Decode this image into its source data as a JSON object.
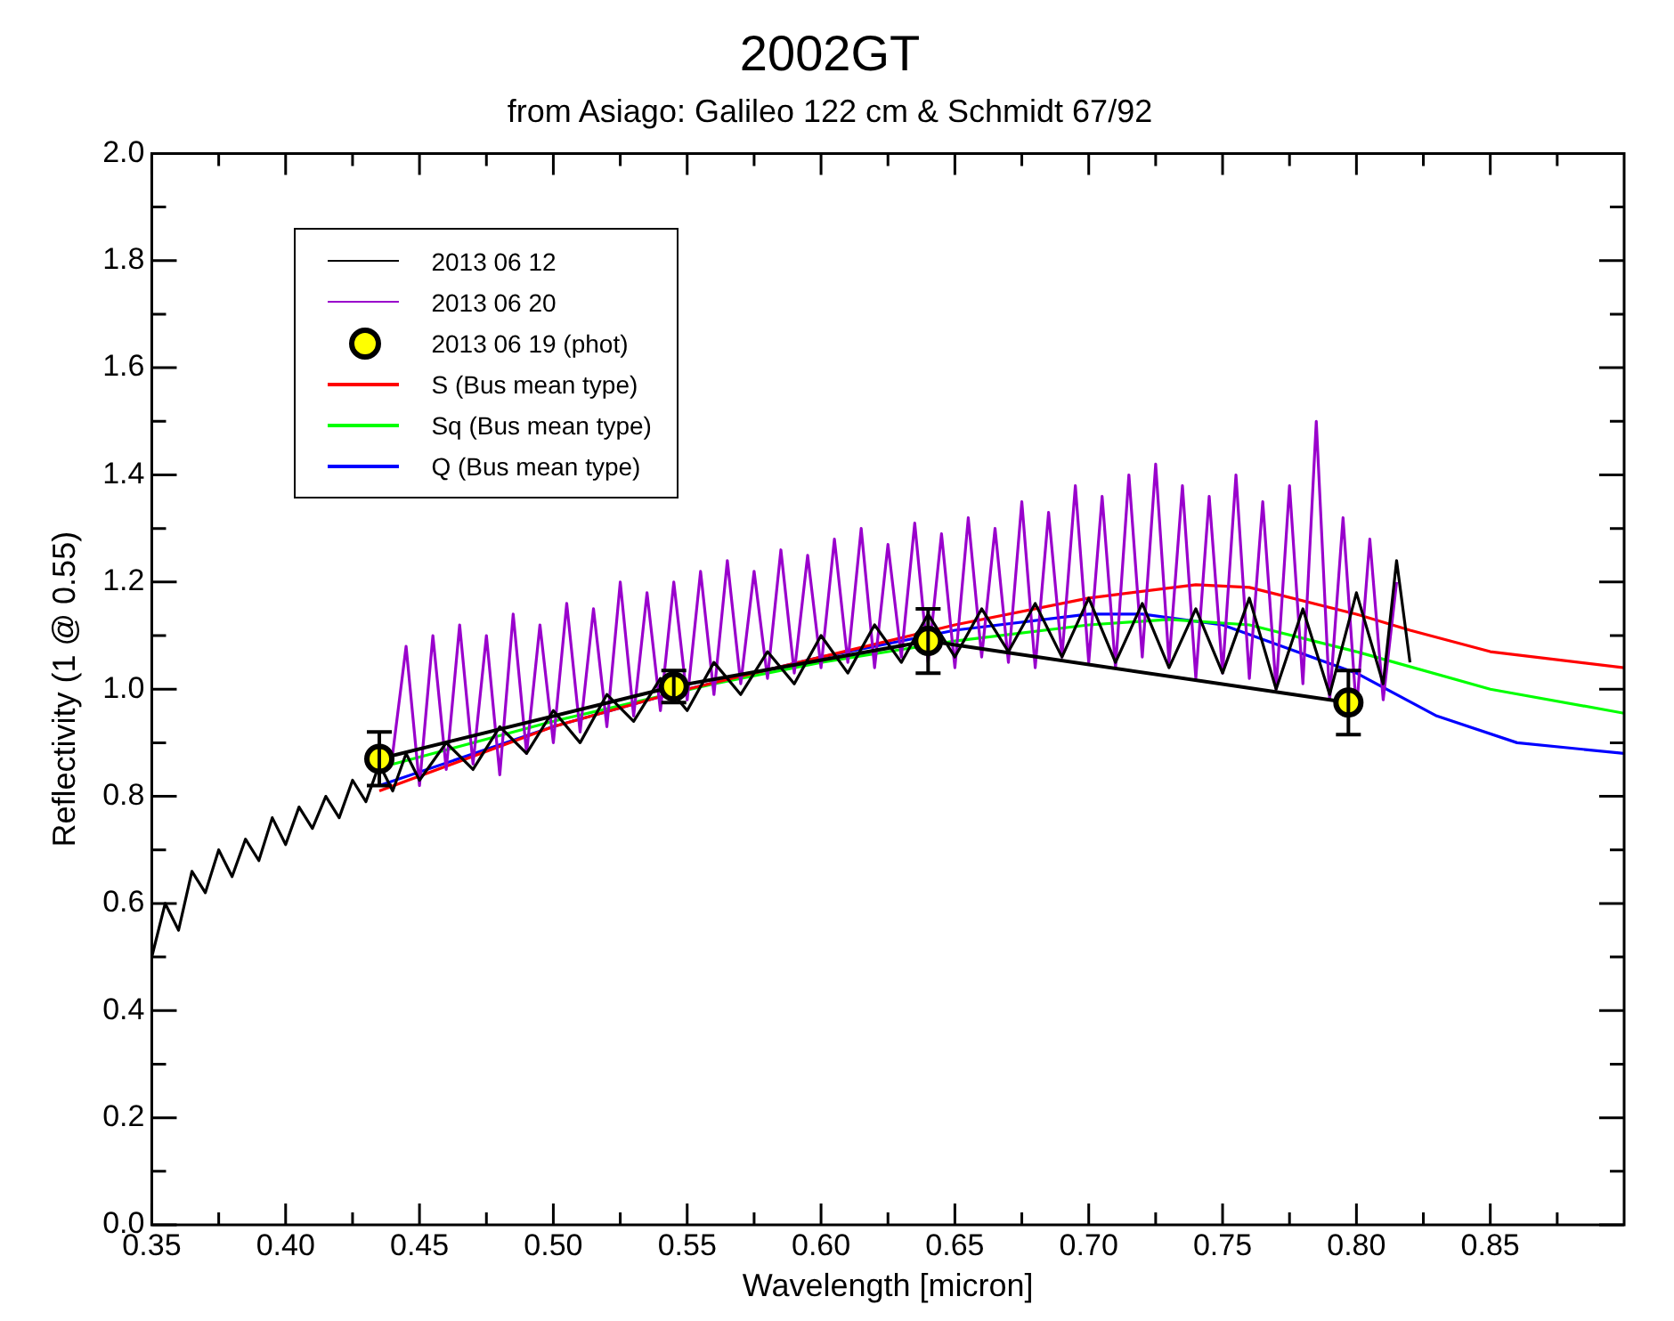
{
  "chart_data": {
    "type": "line",
    "title": "2002GT",
    "subtitle": "from Asiago: Galileo 122 cm & Schmidt 67/92",
    "xlabel": "Wavelength [micron]",
    "ylabel": "Reflectivity (1 @ 0.55)",
    "xlim": [
      0.35,
      0.9
    ],
    "xticks": [
      {
        "value": 0.35,
        "label": "0.35"
      },
      {
        "value": 0.375,
        "label": null
      },
      {
        "value": 0.4,
        "label": "0.40"
      },
      {
        "value": 0.425,
        "label": null
      },
      {
        "value": 0.45,
        "label": "0.45"
      },
      {
        "value": 0.475,
        "label": null
      },
      {
        "value": 0.5,
        "label": "0.50"
      },
      {
        "value": 0.525,
        "label": null
      },
      {
        "value": 0.55,
        "label": "0.55"
      },
      {
        "value": 0.575,
        "label": null
      },
      {
        "value": 0.6,
        "label": "0.60"
      },
      {
        "value": 0.625,
        "label": null
      },
      {
        "value": 0.65,
        "label": "0.65"
      },
      {
        "value": 0.675,
        "label": null
      },
      {
        "value": 0.7,
        "label": "0.70"
      },
      {
        "value": 0.725,
        "label": null
      },
      {
        "value": 0.75,
        "label": "0.75"
      },
      {
        "value": 0.775,
        "label": null
      },
      {
        "value": 0.8,
        "label": "0.80"
      },
      {
        "value": 0.825,
        "label": null
      },
      {
        "value": 0.85,
        "label": "0.85"
      },
      {
        "value": 0.875,
        "label": null
      }
    ],
    "ylim": [
      0,
      2
    ],
    "yticks": [
      {
        "value": 0,
        "label": "0.0"
      },
      {
        "value": 0.1,
        "label": null
      },
      {
        "value": 0.2,
        "label": "0.2"
      },
      {
        "value": 0.3,
        "label": null
      },
      {
        "value": 0.4,
        "label": "0.4"
      },
      {
        "value": 0.5,
        "label": null
      },
      {
        "value": 0.6,
        "label": "0.6"
      },
      {
        "value": 0.7,
        "label": null
      },
      {
        "value": 0.8,
        "label": "0.8"
      },
      {
        "value": 0.9,
        "label": null
      },
      {
        "value": 1,
        "label": "1.0"
      },
      {
        "value": 1.1,
        "label": null
      },
      {
        "value": 1.2,
        "label": "1.2"
      },
      {
        "value": 1.3,
        "label": null
      },
      {
        "value": 1.4,
        "label": "1.4"
      },
      {
        "value": 1.5,
        "label": null
      },
      {
        "value": 1.6,
        "label": "1.6"
      },
      {
        "value": 1.7,
        "label": null
      },
      {
        "value": 1.8,
        "label": "1.8"
      },
      {
        "value": 1.9,
        "label": null
      },
      {
        "value": 2,
        "label": "2.0"
      }
    ],
    "legend": "top left",
    "series": [
      {
        "name": "2013 06 12",
        "color": "#000000",
        "marker": "none",
        "x": [
          0.35,
          0.355,
          0.36,
          0.365,
          0.37,
          0.375,
          0.38,
          0.385,
          0.39,
          0.395,
          0.4,
          0.405,
          0.41,
          0.415,
          0.42,
          0.425,
          0.43,
          0.435,
          0.44,
          0.445,
          0.45,
          0.46,
          0.47,
          0.48,
          0.49,
          0.5,
          0.51,
          0.52,
          0.53,
          0.54,
          0.55,
          0.56,
          0.57,
          0.58,
          0.59,
          0.6,
          0.61,
          0.62,
          0.63,
          0.64,
          0.65,
          0.66,
          0.67,
          0.68,
          0.69,
          0.7,
          0.71,
          0.72,
          0.73,
          0.74,
          0.75,
          0.76,
          0.77,
          0.78,
          0.79,
          0.8,
          0.81,
          0.815,
          0.82
        ],
        "values": [
          0.5,
          0.6,
          0.55,
          0.66,
          0.62,
          0.7,
          0.65,
          0.72,
          0.68,
          0.76,
          0.71,
          0.78,
          0.74,
          0.8,
          0.76,
          0.83,
          0.79,
          0.86,
          0.81,
          0.88,
          0.83,
          0.9,
          0.85,
          0.93,
          0.88,
          0.96,
          0.9,
          0.99,
          0.94,
          1.02,
          0.96,
          1.05,
          0.99,
          1.07,
          1.01,
          1.1,
          1.03,
          1.12,
          1.05,
          1.14,
          1.06,
          1.15,
          1.07,
          1.16,
          1.06,
          1.17,
          1.05,
          1.16,
          1.04,
          1.15,
          1.03,
          1.17,
          1.0,
          1.15,
          0.99,
          1.18,
          1.01,
          1.24,
          1.05
        ]
      },
      {
        "name": "2013 06 20",
        "color": "#9900cc",
        "marker": "none",
        "x": [
          0.44,
          0.445,
          0.45,
          0.455,
          0.46,
          0.465,
          0.47,
          0.475,
          0.48,
          0.485,
          0.49,
          0.495,
          0.5,
          0.505,
          0.51,
          0.515,
          0.52,
          0.525,
          0.53,
          0.535,
          0.54,
          0.545,
          0.55,
          0.555,
          0.56,
          0.565,
          0.57,
          0.575,
          0.58,
          0.585,
          0.59,
          0.595,
          0.6,
          0.605,
          0.61,
          0.615,
          0.62,
          0.625,
          0.63,
          0.635,
          0.64,
          0.645,
          0.65,
          0.655,
          0.66,
          0.665,
          0.67,
          0.675,
          0.68,
          0.685,
          0.69,
          0.695,
          0.7,
          0.705,
          0.71,
          0.715,
          0.72,
          0.725,
          0.73,
          0.735,
          0.74,
          0.745,
          0.75,
          0.755,
          0.76,
          0.765,
          0.77,
          0.775,
          0.78,
          0.785,
          0.79,
          0.795,
          0.8,
          0.805,
          0.81,
          0.815
        ],
        "values": [
          0.88,
          1.08,
          0.82,
          1.1,
          0.85,
          1.12,
          0.86,
          1.1,
          0.84,
          1.14,
          0.88,
          1.12,
          0.9,
          1.16,
          0.92,
          1.15,
          0.93,
          1.2,
          0.95,
          1.18,
          0.96,
          1.2,
          0.98,
          1.22,
          0.99,
          1.24,
          1.01,
          1.22,
          1.02,
          1.26,
          1.03,
          1.25,
          1.04,
          1.28,
          1.05,
          1.3,
          1.04,
          1.27,
          1.06,
          1.31,
          1.05,
          1.29,
          1.04,
          1.32,
          1.06,
          1.3,
          1.05,
          1.35,
          1.04,
          1.33,
          1.06,
          1.38,
          1.05,
          1.36,
          1.04,
          1.4,
          1.06,
          1.42,
          1.05,
          1.38,
          1.02,
          1.36,
          1.03,
          1.4,
          1.02,
          1.35,
          1.0,
          1.38,
          1.01,
          1.5,
          0.98,
          1.32,
          0.96,
          1.28,
          0.98,
          1.2
        ]
      },
      {
        "name": "2013 06 19 (phot)",
        "color": "#ffff00",
        "marker": "circle",
        "x": [
          0.435,
          0.545,
          0.64,
          0.797
        ],
        "values": [
          0.87,
          1.005,
          1.09,
          0.975
        ],
        "errors": [
          0.05,
          0.03,
          0.06,
          0.06
        ]
      },
      {
        "name": "S (Bus mean type)",
        "color": "#ff0000",
        "marker": "none",
        "x": [
          0.435,
          0.5,
          0.55,
          0.6,
          0.65,
          0.7,
          0.74,
          0.76,
          0.8,
          0.82,
          0.85,
          0.9
        ],
        "values": [
          0.81,
          0.93,
          1.0,
          1.06,
          1.12,
          1.17,
          1.195,
          1.19,
          1.14,
          1.11,
          1.07,
          1.04
        ]
      },
      {
        "name": "Sq (Bus mean type)",
        "color": "#00ff00",
        "marker": "none",
        "x": [
          0.44,
          0.5,
          0.56,
          0.6,
          0.65,
          0.7,
          0.73,
          0.76,
          0.8,
          0.85,
          0.9
        ],
        "values": [
          0.86,
          0.94,
          1.01,
          1.05,
          1.09,
          1.12,
          1.13,
          1.12,
          1.07,
          1.0,
          0.955
        ]
      },
      {
        "name": "Q (Bus mean type)",
        "color": "#0000ff",
        "marker": "none",
        "x": [
          0.435,
          0.5,
          0.55,
          0.6,
          0.65,
          0.7,
          0.72,
          0.75,
          0.8,
          0.83,
          0.86,
          0.9
        ],
        "values": [
          0.82,
          0.93,
          1.0,
          1.06,
          1.11,
          1.14,
          1.14,
          1.12,
          1.03,
          0.95,
          0.9,
          0.88
        ]
      }
    ]
  }
}
